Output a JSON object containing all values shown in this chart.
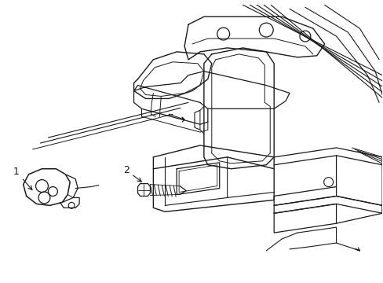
{
  "bg_color": "#ffffff",
  "line_color": "#1a1a1a",
  "figsize": [
    4.89,
    3.6
  ],
  "dpi": 100,
  "label1_text": "1",
  "label2_text": "2"
}
